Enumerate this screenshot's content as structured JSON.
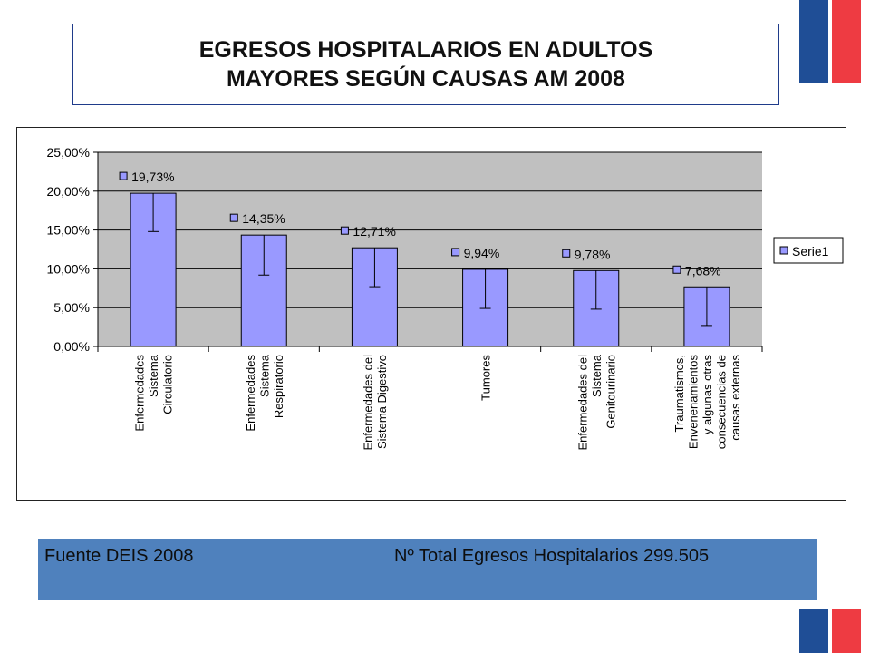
{
  "title": "EGRESOS HOSPITALARIOS EN ADULTOS\nMAYORES SEGÚN CAUSAS AM 2008",
  "footer": {
    "source": "Fuente DEIS 2008",
    "total": "Nº Total Egresos Hospitalarios 299.505"
  },
  "colors": {
    "bar": "#9999ff",
    "plot_background": "#c0c0c0",
    "footer_background": "#4f81bd",
    "flag_blue": "#1f4e96",
    "flag_red": "#ee3b42"
  },
  "chart_data": {
    "type": "bar",
    "categories": [
      [
        "Enfermedades",
        "Sistema",
        "Circulatorio"
      ],
      [
        "Enfermedades",
        "Sistema",
        "Respiratorio"
      ],
      [
        "Enfermedades del",
        "Sistema Digestivo"
      ],
      [
        "Tumores"
      ],
      [
        "Enfermedades del",
        "Sistema",
        "Genitourinario"
      ],
      [
        "Traumatismos,",
        "Envenenamientos",
        "y algunas otras",
        "consecuencias de",
        "causas externas"
      ]
    ],
    "series": [
      {
        "name": "Serie1",
        "values": [
          19.73,
          14.35,
          12.71,
          9.94,
          9.78,
          7.68
        ],
        "labels": [
          "19,73%",
          "14,35%",
          "12,71%",
          "9,94%",
          "9,78%",
          "7,68%"
        ],
        "error_low": [
          14.8,
          9.2,
          7.7,
          4.9,
          4.8,
          2.7
        ]
      }
    ],
    "ylim": [
      0,
      25
    ],
    "yticks": [
      "0,00%",
      "5,00%",
      "10,00%",
      "15,00%",
      "20,00%",
      "25,00%"
    ],
    "grid": true,
    "legend": "right"
  }
}
